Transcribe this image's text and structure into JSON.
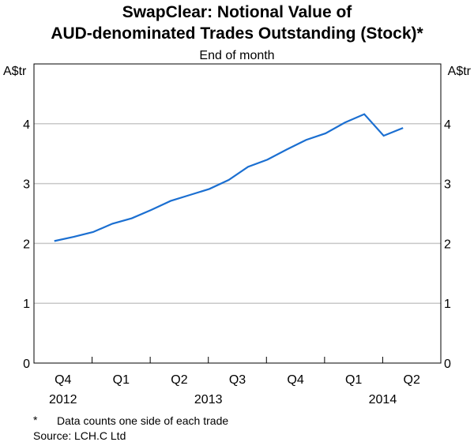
{
  "chart_data": {
    "type": "line",
    "title_line1": "SwapClear: Notional Value of",
    "title_line2": "AUD-denominated Trades Outstanding (Stock)*",
    "subtitle": "End of month",
    "ylabel_left": "A$tr",
    "ylabel_right": "A$tr",
    "ylim": [
      0,
      5
    ],
    "yticks": [
      0,
      1,
      2,
      3,
      4
    ],
    "quarter_labels": [
      "Q4",
      "Q1",
      "Q2",
      "Q3",
      "Q4",
      "Q1",
      "Q2"
    ],
    "year_labels": [
      {
        "label": "2012",
        "quarter_index": 0
      },
      {
        "label": "2013",
        "quarter_index": 2.5
      },
      {
        "label": "2014",
        "quarter_index": 5.5
      }
    ],
    "x_start_month_index": 1,
    "series": [
      {
        "name": "Notional value",
        "color": "#1b6fd1",
        "x_labels": [
          "Nov-2012",
          "Dec-2012",
          "Jan-2013",
          "Feb-2013",
          "Mar-2013",
          "Apr-2013",
          "May-2013",
          "Jun-2013",
          "Jul-2013",
          "Aug-2013",
          "Sep-2013",
          "Oct-2013",
          "Nov-2013",
          "Dec-2013",
          "Jan-2014",
          "Feb-2014",
          "Mar-2014",
          "Apr-2014",
          "May-2014"
        ],
        "values": [
          2.04,
          2.11,
          2.19,
          2.33,
          2.42,
          2.56,
          2.71,
          2.81,
          2.91,
          3.06,
          3.28,
          3.4,
          3.57,
          3.73,
          3.84,
          4.02,
          4.16,
          3.8,
          3.93
        ]
      }
    ],
    "grid": true
  },
  "footnote": {
    "marker": "*",
    "text": "Data counts one side of each trade"
  },
  "source": {
    "label": "Source:",
    "text": "LCH.C Ltd"
  }
}
